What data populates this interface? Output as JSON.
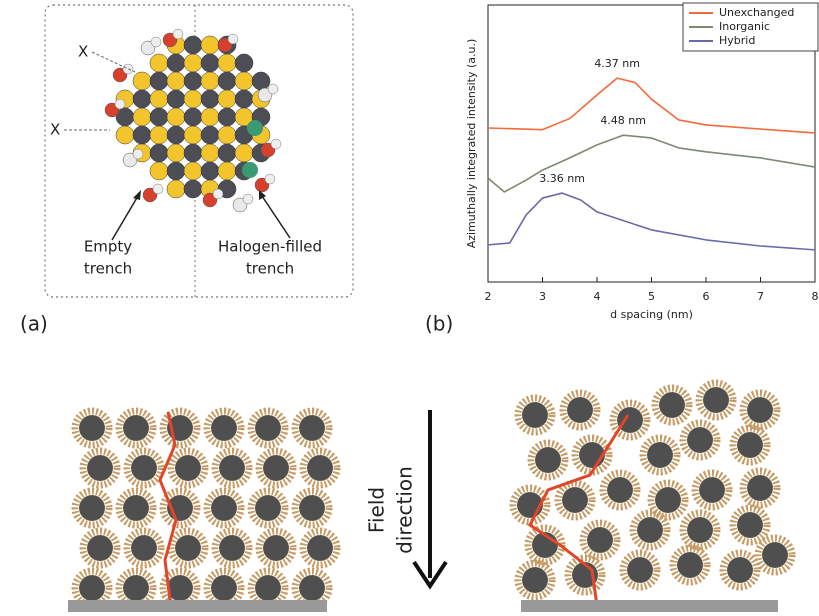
{
  "panel_a": {
    "label": "(a)",
    "ligand_labels": [
      "X",
      "X"
    ],
    "left_label": [
      "Empty",
      "trench"
    ],
    "right_label": [
      "Halogen-filled",
      "trench"
    ]
  },
  "panel_b_label": "(b)",
  "panel_c": {
    "field_label": [
      "Field",
      "direction"
    ]
  },
  "chart_data": {
    "type": "line",
    "y_label": "Azimuthally integrated intensity (a.u.)",
    "x_label": "d spacing (nm)",
    "xlim": [
      2,
      8
    ],
    "xticks": [
      2,
      3,
      4,
      5,
      6,
      7,
      8
    ],
    "ylim": [
      0,
      10
    ],
    "legend": "top-right",
    "annotations": [
      "4.37 nm",
      "4.48 nm",
      "3.36 nm"
    ],
    "series": [
      {
        "name": "Unexchanged",
        "color": "#f26b3a",
        "x": [
          2,
          3,
          3.5,
          4,
          4.37,
          4.7,
          5,
          5.5,
          6,
          7,
          8
        ],
        "values": [
          5.56,
          5.5,
          5.9,
          6.75,
          7.36,
          7.2,
          6.6,
          5.85,
          5.67,
          5.52,
          5.38
        ]
      },
      {
        "name": "Inorganic",
        "color": "#7d8a72",
        "x": [
          2,
          2.3,
          2.7,
          3,
          3.5,
          4,
          4.48,
          5,
          5.5,
          6,
          7,
          8
        ],
        "values": [
          3.75,
          3.25,
          3.68,
          4.04,
          4.48,
          4.95,
          5.3,
          5.2,
          4.84,
          4.7,
          4.48,
          4.15
        ]
      },
      {
        "name": "Hybrid",
        "color": "#6a6aa8",
        "x": [
          2,
          2.4,
          2.7,
          3,
          3.36,
          3.7,
          4,
          5,
          6,
          7,
          8
        ],
        "values": [
          1.34,
          1.41,
          2.42,
          3.03,
          3.21,
          2.96,
          2.53,
          1.88,
          1.52,
          1.3,
          1.16
        ]
      }
    ]
  }
}
